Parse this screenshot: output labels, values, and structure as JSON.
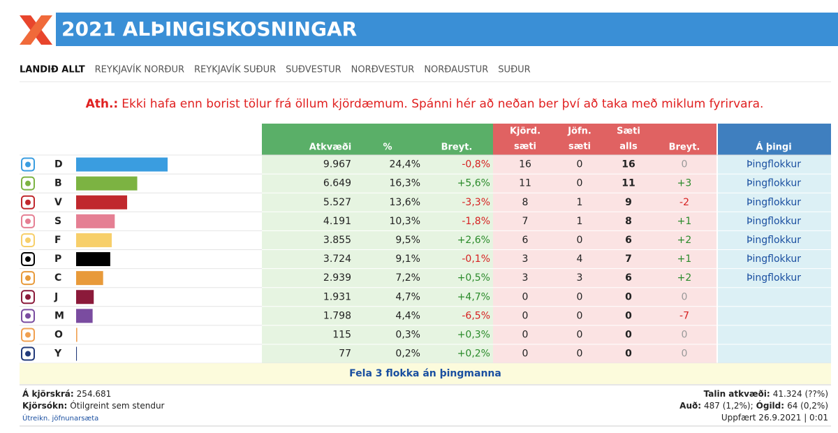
{
  "header": {
    "title": "2021 ALÞINGISKOSNINGAR"
  },
  "nav": {
    "tabs": [
      "LANDIÐ ALLT",
      "REYKJAVÍK NORÐUR",
      "REYKJAVÍK SUÐUR",
      "SUÐVESTUR",
      "NORÐVESTUR",
      "NORÐAUSTUR",
      "SUÐUR"
    ]
  },
  "notice": {
    "label": "Ath.:",
    "text": "Ekki hafa enn borist tölur frá öllum kjördæmum. Spánni hér að neðan ber því að taka með miklum fyrirvara."
  },
  "table": {
    "columns": [
      [
        "Atkvæði"
      ],
      [
        "%"
      ],
      [
        "Breyt."
      ],
      [
        "Kjörd.",
        "sæti"
      ],
      [
        "Jöfn.",
        "sæti"
      ],
      [
        "Sæti",
        "alls"
      ],
      [
        "Breyt."
      ],
      [
        "Á þingi"
      ]
    ],
    "rows": [
      {
        "letter": "D",
        "color": "#3a9de0",
        "votes": "9.967",
        "percent": {
          "value": 24.4,
          "label": "24,4%"
        },
        "change": "-0,8%",
        "constituency": 16,
        "leveling": 0,
        "total": 16,
        "seat_change": "0",
        "parliament": "Þingflokkur"
      },
      {
        "letter": "B",
        "color": "#7cb342",
        "votes": "6.649",
        "percent": {
          "value": 16.3,
          "label": "16,3%"
        },
        "change": "+5,6%",
        "constituency": 11,
        "leveling": 0,
        "total": 11,
        "seat_change": "+3",
        "parliament": "Þingflokkur"
      },
      {
        "letter": "V",
        "color": "#c0282d",
        "votes": "5.527",
        "percent": {
          "value": 13.6,
          "label": "13,6%"
        },
        "change": "-3,3%",
        "constituency": 8,
        "leveling": 1,
        "total": 9,
        "seat_change": "-2",
        "parliament": "Þingflokkur"
      },
      {
        "letter": "S",
        "color": "#e57f93",
        "votes": "4.191",
        "percent": {
          "value": 10.3,
          "label": "10,3%"
        },
        "change": "-1,8%",
        "constituency": 7,
        "leveling": 1,
        "total": 8,
        "seat_change": "+1",
        "parliament": "Þingflokkur"
      },
      {
        "letter": "F",
        "color": "#f7cf6a",
        "votes": "3.855",
        "percent": {
          "value": 9.5,
          "label": "9,5%"
        },
        "change": "+2,6%",
        "constituency": 6,
        "leveling": 0,
        "total": 6,
        "seat_change": "+2",
        "parliament": "Þingflokkur"
      },
      {
        "letter": "P",
        "color": "#000000",
        "votes": "3.724",
        "percent": {
          "value": 9.1,
          "label": "9,1%"
        },
        "change": "-0,1%",
        "constituency": 3,
        "leveling": 4,
        "total": 7,
        "seat_change": "+1",
        "parliament": "Þingflokkur"
      },
      {
        "letter": "C",
        "color": "#e89a3a",
        "votes": "2.939",
        "percent": {
          "value": 7.2,
          "label": "7,2%"
        },
        "change": "+0,5%",
        "constituency": 3,
        "leveling": 3,
        "total": 6,
        "seat_change": "+2",
        "parliament": "Þingflokkur"
      },
      {
        "letter": "J",
        "color": "#8b1a3a",
        "votes": "1.931",
        "percent": {
          "value": 4.7,
          "label": "4,7%"
        },
        "change": "+4,7%",
        "constituency": 0,
        "leveling": 0,
        "total": 0,
        "seat_change": "0",
        "parliament": null
      },
      {
        "letter": "M",
        "color": "#7a4ca0",
        "votes": "1.798",
        "percent": {
          "value": 4.4,
          "label": "4,4%"
        },
        "change": "-6,5%",
        "constituency": 0,
        "leveling": 0,
        "total": 0,
        "seat_change": "-7",
        "parliament": null
      },
      {
        "letter": "O",
        "color": "#f0a050",
        "votes": "115",
        "percent": {
          "value": 0.3,
          "label": "0,3%"
        },
        "change": "+0,3%",
        "constituency": 0,
        "leveling": 0,
        "total": 0,
        "seat_change": "0",
        "parliament": null
      },
      {
        "letter": "Y",
        "color": "#223a7a",
        "votes": "77",
        "percent": {
          "value": 0.2,
          "label": "0,2%"
        },
        "change": "+0,2%",
        "constituency": 0,
        "leveling": 0,
        "total": 0,
        "seat_change": "0",
        "parliament": null
      }
    ],
    "toggle": "Fela 3 flokka án þingmanna"
  },
  "footer": {
    "left": [
      [
        {
          "label": "Á kjörskrá:",
          "value": "254.681"
        }
      ],
      [
        {
          "label": "Kjörsókn:",
          "value": "Ótilgreint sem stendur"
        }
      ]
    ],
    "link": "Útreikn. jöfnunarsæta",
    "right": [
      [
        {
          "label": "Talin atkvæði:",
          "value": "41.324 (??%)"
        }
      ],
      [
        {
          "label": "Auð:",
          "value": "487 (1,2%);"
        },
        {
          "label": "Ógild:",
          "value": "64 (0,2%)"
        }
      ],
      [
        {
          "value": "Uppfært 26.9.2021 | 0:01"
        }
      ]
    ]
  }
}
